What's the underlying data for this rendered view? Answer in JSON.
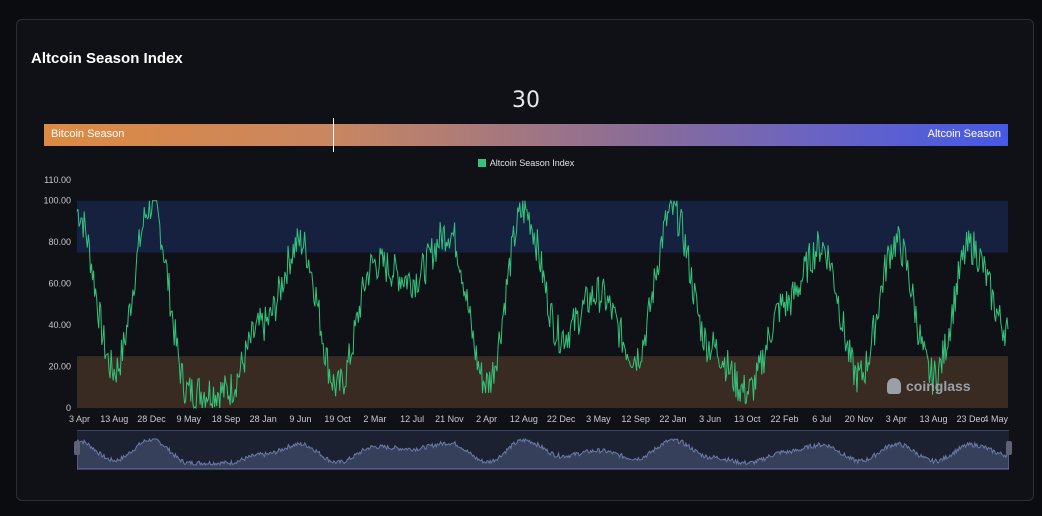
{
  "title": "Altcoin Season Index",
  "current_value": "30",
  "gauge": {
    "left_label": "Bitcoin Season",
    "right_label": "Altcoin Season",
    "position": 30,
    "colors": {
      "left": "#dd8a42",
      "right": "#4659e6"
    }
  },
  "legend": {
    "label": "Altcoin Season Index",
    "color": "#33c27a"
  },
  "watermark": "coinglass",
  "colors": {
    "line": "#33c27a",
    "altcoin_band": "#16203f",
    "bitcoin_band": "#3a2b22",
    "navigator_line": "#6a7aa8"
  },
  "chart_data": {
    "type": "line",
    "series": [
      {
        "name": "Altcoin Season Index",
        "x": [
          "3 Apr",
          "13 Aug",
          "28 Dec",
          "9 May",
          "18 Sep",
          "28 Jan",
          "9 Jun",
          "19 Oct",
          "2 Mar",
          "12 Jul",
          "21 Nov",
          "2 Apr",
          "12 Aug",
          "22 Dec",
          "3 May",
          "12 Sep",
          "22 Jan",
          "3 Jun",
          "13 Oct",
          "22 Feb",
          "6 Jul",
          "20 Nov",
          "3 Apr",
          "13 Aug",
          "23 Dec",
          "4 May"
        ],
        "values": [
          95,
          18,
          98,
          8,
          8,
          40,
          80,
          10,
          70,
          62,
          85,
          12,
          95,
          35,
          55,
          25,
          95,
          30,
          8,
          50,
          78,
          15,
          80,
          15,
          78,
          38
        ]
      }
    ],
    "x_tick_labels": [
      "3 Apr",
      "13 Aug",
      "28 Dec",
      "9 May",
      "18 Sep",
      "28 Jan",
      "9 Jun",
      "19 Oct",
      "2 Mar",
      "12 Jul",
      "21 Nov",
      "2 Apr",
      "12 Aug",
      "22 Dec",
      "3 May",
      "12 Sep",
      "22 Jan",
      "3 Jun",
      "13 Oct",
      "22 Feb",
      "6 Jul",
      "20 Nov",
      "3 Apr",
      "13 Aug",
      "23 Dec",
      "4 May"
    ],
    "y_tick_labels": [
      "0",
      "20.00",
      "40.00",
      "60.00",
      "80.00",
      "100.00",
      "110.00"
    ],
    "y_ticks": [
      0,
      20,
      40,
      60,
      80,
      100,
      110
    ],
    "ylim": [
      0,
      110
    ],
    "bands": [
      {
        "from": 75,
        "to": 100,
        "label": "altcoin"
      },
      {
        "from": 0,
        "to": 25,
        "label": "bitcoin"
      }
    ]
  }
}
